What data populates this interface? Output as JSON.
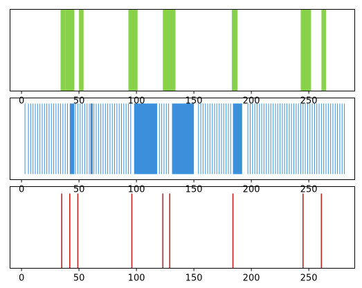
{
  "colors": {
    "panel1": "#88d14a",
    "panel2": "#3b8fdb",
    "panel3": "#c8201e",
    "axis": "#000000",
    "background": "#ffffff"
  },
  "chart_data": [
    {
      "type": "bar",
      "name": "",
      "xlim": [
        -10,
        290
      ],
      "x_ticks": [
        0,
        50,
        100,
        150,
        200,
        250
      ],
      "y_ticks": [],
      "intervals": [
        [
          34,
          38
        ],
        [
          38,
          46
        ],
        [
          50,
          54
        ],
        [
          93,
          101
        ],
        [
          123,
          134
        ],
        [
          183,
          188
        ],
        [
          243,
          252
        ],
        [
          261,
          265
        ]
      ],
      "grid": false
    },
    {
      "type": "bar",
      "name": "",
      "xlim": [
        -10,
        290
      ],
      "x_ticks": [
        0,
        50,
        100,
        150,
        200,
        250
      ],
      "y_ticks": [],
      "lines": [
        3,
        6,
        8,
        10,
        12,
        14,
        16,
        18,
        20,
        22,
        24,
        26,
        28,
        30,
        32,
        34,
        36,
        38,
        40,
        47,
        49,
        51,
        53,
        55,
        57,
        59,
        61,
        63,
        65,
        67,
        69,
        71,
        73,
        75,
        77,
        79,
        81,
        83,
        85,
        87,
        89,
        91,
        93,
        95,
        120,
        122,
        124,
        126,
        128,
        154,
        156,
        158,
        160,
        162,
        164,
        166,
        168,
        170,
        172,
        174,
        176,
        178,
        180,
        182,
        197,
        199,
        201,
        203,
        205,
        207,
        209,
        211,
        213,
        215,
        217,
        219,
        221,
        223,
        225,
        227,
        229,
        231,
        233,
        235,
        237,
        239,
        241,
        243,
        245,
        247,
        249,
        251,
        253,
        255,
        257,
        259,
        261,
        263,
        265,
        267,
        269,
        271,
        273,
        275,
        277,
        279,
        281
      ],
      "dense_intervals": [
        [
          42,
          46
        ],
        [
          60,
          62
        ],
        [
          98,
          118
        ],
        [
          131,
          150
        ],
        [
          184,
          192
        ]
      ],
      "grid": false
    },
    {
      "type": "bar",
      "name": "",
      "xlim": [
        -10,
        290
      ],
      "x_ticks": [
        0,
        50,
        100,
        150,
        200,
        250
      ],
      "y_ticks": [],
      "lines": [
        35,
        42,
        49,
        96,
        123,
        129,
        184,
        245,
        261
      ],
      "grid": false
    }
  ]
}
